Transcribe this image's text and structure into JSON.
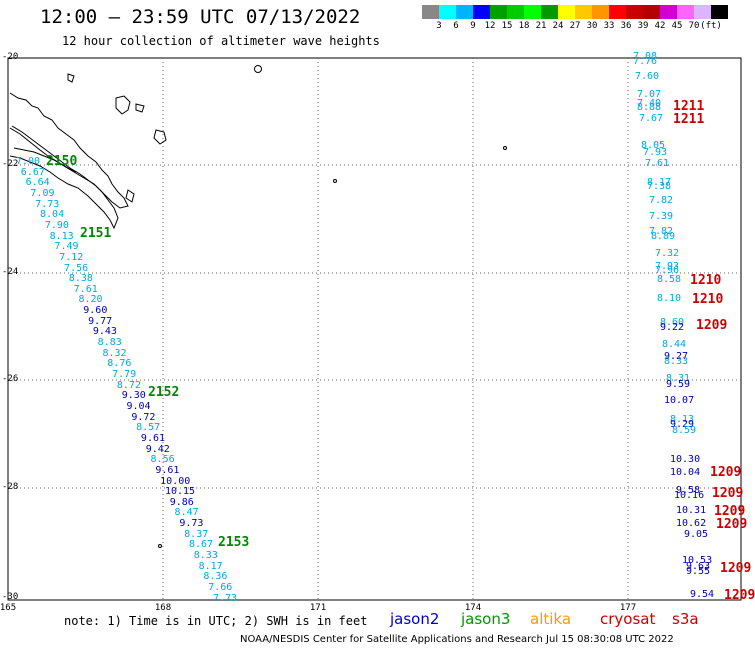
{
  "title": "12:00 – 23:59 UTC 07/13/2022",
  "subtitle": "12 hour collection of altimeter wave heights",
  "legend": {
    "colors": [
      "#888888",
      "#00ffff",
      "#00b4ff",
      "#0000ff",
      "#00a000",
      "#00cc00",
      "#00ff00",
      "#009900",
      "#ffff00",
      "#ffc800",
      "#ff9600",
      "#ff0000",
      "#c80000",
      "#b40000",
      "#d200d2",
      "#ff64ff",
      "#dcb4ff",
      "#000000"
    ],
    "labels": [
      "3",
      "6",
      "9",
      "12",
      "15",
      "18",
      "21",
      "24",
      "27",
      "30",
      "33",
      "36",
      "39",
      "42",
      "45",
      "70",
      "(ft)"
    ]
  },
  "y_ticks": [
    "-20",
    "-22",
    "-24",
    "-26",
    "-28",
    "-30"
  ],
  "x_ticks": [
    "165",
    "168",
    "171",
    "174",
    "177"
  ],
  "note": "note: 1) Time is in UTC; 2) SWH is in feet",
  "satellites": [
    {
      "name": "jason2",
      "color": "#0000cc"
    },
    {
      "name": "jason3",
      "color": "#009900"
    },
    {
      "name": "altika",
      "color": "#ff9900"
    },
    {
      "name": "cryosat",
      "color": "#cc0000"
    },
    {
      "name": "s3a",
      "color": "#cc0000"
    }
  ],
  "footer": "NOAA/NESDIS Center for Satellite Applications and Research     Jul 15 08:30:08 UTC 2022",
  "colors": {
    "cyan": "#00a8e0",
    "blue": "#0000b0",
    "green": "#008800",
    "red": "#cc0000"
  },
  "left_track": [
    {
      "v": "7.00",
      "c": "cyan"
    },
    {
      "v": "6.67",
      "c": "cyan"
    },
    {
      "v": "6.64",
      "c": "cyan"
    },
    {
      "v": "7.09",
      "c": "cyan"
    },
    {
      "v": "7.73",
      "c": "cyan"
    },
    {
      "v": "8.04",
      "c": "cyan"
    },
    {
      "v": "7.90",
      "c": "cyan"
    },
    {
      "v": "8.13",
      "c": "cyan"
    },
    {
      "v": "7.49",
      "c": "cyan"
    },
    {
      "v": "7.12",
      "c": "cyan"
    },
    {
      "v": "7.56",
      "c": "cyan"
    },
    {
      "v": "8.38",
      "c": "cyan"
    },
    {
      "v": "7.61",
      "c": "cyan"
    },
    {
      "v": "8.20",
      "c": "cyan"
    },
    {
      "v": "9.60",
      "c": "blue"
    },
    {
      "v": "9.77",
      "c": "blue"
    },
    {
      "v": "9.43",
      "c": "blue"
    },
    {
      "v": "8.83",
      "c": "cyan"
    },
    {
      "v": "8.32",
      "c": "cyan"
    },
    {
      "v": "8.76",
      "c": "cyan"
    },
    {
      "v": "7.79",
      "c": "cyan"
    },
    {
      "v": "8.72",
      "c": "cyan"
    },
    {
      "v": "9.30",
      "c": "blue"
    },
    {
      "v": "9.04",
      "c": "blue"
    },
    {
      "v": "9.72",
      "c": "blue"
    },
    {
      "v": "8.57",
      "c": "cyan"
    },
    {
      "v": "9.61",
      "c": "blue"
    },
    {
      "v": "9.42",
      "c": "blue"
    },
    {
      "v": "8.56",
      "c": "cyan"
    },
    {
      "v": "9.61",
      "c": "blue"
    },
    {
      "v": "10.00",
      "c": "blue"
    },
    {
      "v": "10.15",
      "c": "blue"
    },
    {
      "v": "9.86",
      "c": "blue"
    },
    {
      "v": "8.47",
      "c": "cyan"
    },
    {
      "v": "9.73",
      "c": "blue"
    },
    {
      "v": "8.37",
      "c": "cyan"
    },
    {
      "v": "8.67",
      "c": "cyan"
    },
    {
      "v": "8.33",
      "c": "cyan"
    },
    {
      "v": "8.17",
      "c": "cyan"
    },
    {
      "v": "8.36",
      "c": "cyan"
    },
    {
      "v": "7.66",
      "c": "cyan"
    },
    {
      "v": "7.73",
      "c": "cyan"
    }
  ],
  "left_passes": [
    {
      "label": "2150",
      "c": "green"
    },
    {
      "label": "2151",
      "c": "green"
    },
    {
      "label": "2152",
      "c": "green"
    },
    {
      "label": "2153",
      "c": "green"
    }
  ],
  "right_track": [
    {
      "v": "7.08",
      "c": "cyan"
    },
    {
      "v": "7.76",
      "c": "cyan"
    },
    {
      "v": "7.60",
      "c": "cyan"
    },
    {
      "v": "7.07",
      "c": "cyan"
    },
    {
      "v": "7.40",
      "c": "cyan"
    },
    {
      "v": "8.88",
      "c": "cyan"
    },
    {
      "v": "7.67",
      "c": "cyan"
    },
    {
      "v": "8.05",
      "c": "cyan"
    },
    {
      "v": "7.93",
      "c": "cyan"
    },
    {
      "v": "7.61",
      "c": "cyan"
    },
    {
      "v": "8.17",
      "c": "cyan"
    },
    {
      "v": "7.38",
      "c": "cyan"
    },
    {
      "v": "7.82",
      "c": "cyan"
    },
    {
      "v": "7.39",
      "c": "cyan"
    },
    {
      "v": "7.82",
      "c": "cyan"
    },
    {
      "v": "8.89",
      "c": "cyan"
    },
    {
      "v": "7.32",
      "c": "cyan"
    },
    {
      "v": "7.93",
      "c": "cyan"
    },
    {
      "v": "7.96",
      "c": "cyan"
    },
    {
      "v": "8.58",
      "c": "cyan"
    },
    {
      "v": "8.10",
      "c": "cyan"
    },
    {
      "v": "8.60",
      "c": "cyan"
    },
    {
      "v": "9.22",
      "c": "blue"
    },
    {
      "v": "8.44",
      "c": "cyan"
    },
    {
      "v": "9.27",
      "c": "blue"
    },
    {
      "v": "8.33",
      "c": "cyan"
    },
    {
      "v": "8.31",
      "c": "cyan"
    },
    {
      "v": "9.59",
      "c": "blue"
    },
    {
      "v": "10.07",
      "c": "blue"
    },
    {
      "v": "8.13",
      "c": "cyan"
    },
    {
      "v": "9.29",
      "c": "blue"
    },
    {
      "v": "8.59",
      "c": "cyan"
    },
    {
      "v": "10.30",
      "c": "blue"
    },
    {
      "v": "10.04",
      "c": "blue"
    },
    {
      "v": "9.58",
      "c": "blue"
    },
    {
      "v": "10.16",
      "c": "blue"
    },
    {
      "v": "10.31",
      "c": "blue"
    },
    {
      "v": "10.62",
      "c": "blue"
    },
    {
      "v": "9.05",
      "c": "blue"
    },
    {
      "v": "10.53",
      "c": "blue"
    },
    {
      "v": "9.63",
      "c": "blue"
    },
    {
      "v": "9.55",
      "c": "blue"
    },
    {
      "v": "9.54",
      "c": "blue"
    }
  ],
  "right_passes": [
    {
      "label": "1211",
      "c": "red"
    },
    {
      "label": "1211",
      "c": "red"
    },
    {
      "label": "1210",
      "c": "red"
    },
    {
      "label": "1210",
      "c": "red"
    },
    {
      "label": "1209",
      "c": "red"
    },
    {
      "label": "1209",
      "c": "red"
    },
    {
      "label": "1209",
      "c": "red"
    },
    {
      "label": "1209",
      "c": "red"
    },
    {
      "label": "1209",
      "c": "red"
    },
    {
      "label": "1209",
      "c": "red"
    },
    {
      "label": "1209",
      "c": "red"
    }
  ]
}
